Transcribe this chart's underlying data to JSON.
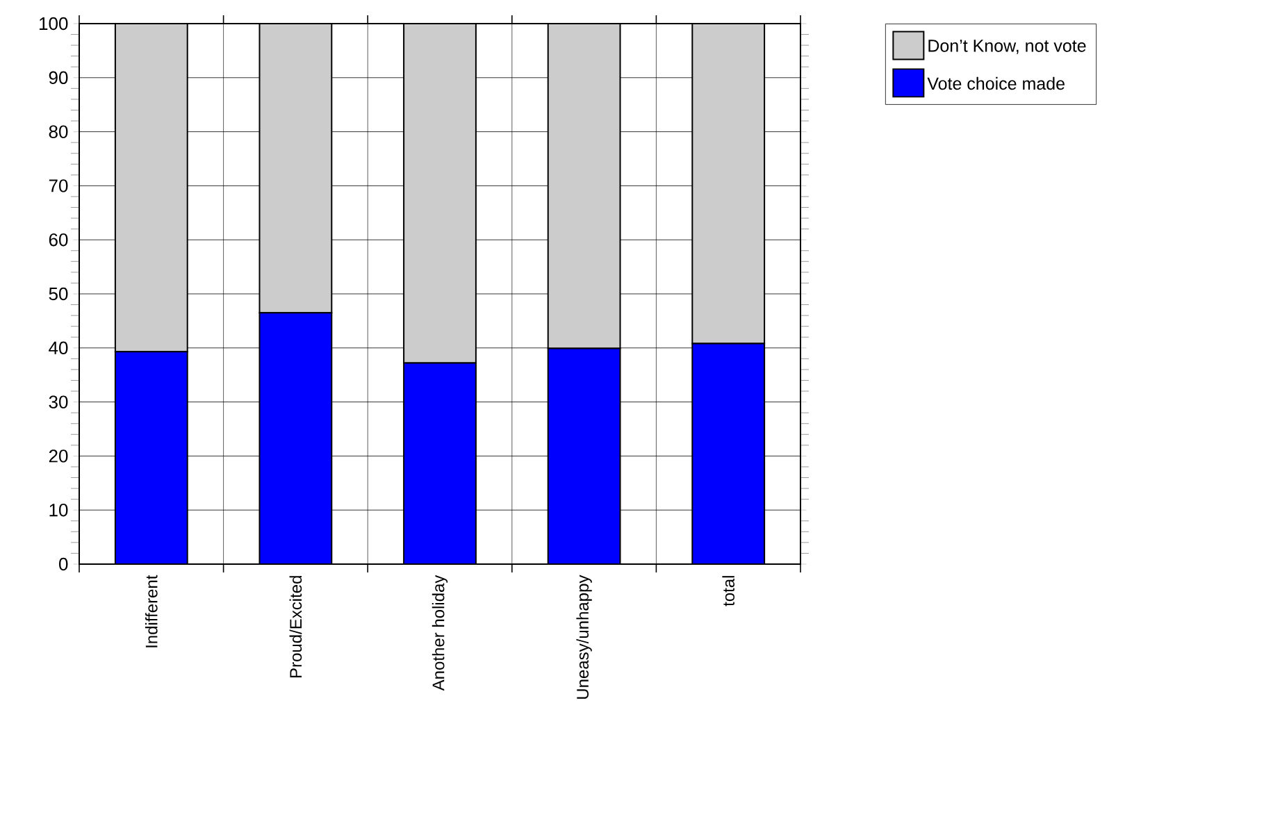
{
  "chart_data": {
    "type": "bar",
    "stacked": true,
    "categories": [
      "Indifferent",
      "Proud/Excited",
      "Another holiday",
      "Uneasy/unhappy",
      "total"
    ],
    "series": [
      {
        "name": "Vote choice made",
        "color": "#0000ff",
        "values": [
          39.3,
          46.5,
          37.2,
          39.9,
          40.8
        ]
      },
      {
        "name": "Don’t Know, not vote",
        "color": "#cccccc",
        "values": [
          60.7,
          53.5,
          62.8,
          60.1,
          59.2
        ]
      }
    ],
    "ylim": [
      0,
      100
    ],
    "yticks": [
      0,
      10,
      20,
      30,
      40,
      50,
      60,
      70,
      80,
      90,
      100
    ],
    "grid": true,
    "legend": "top right"
  }
}
